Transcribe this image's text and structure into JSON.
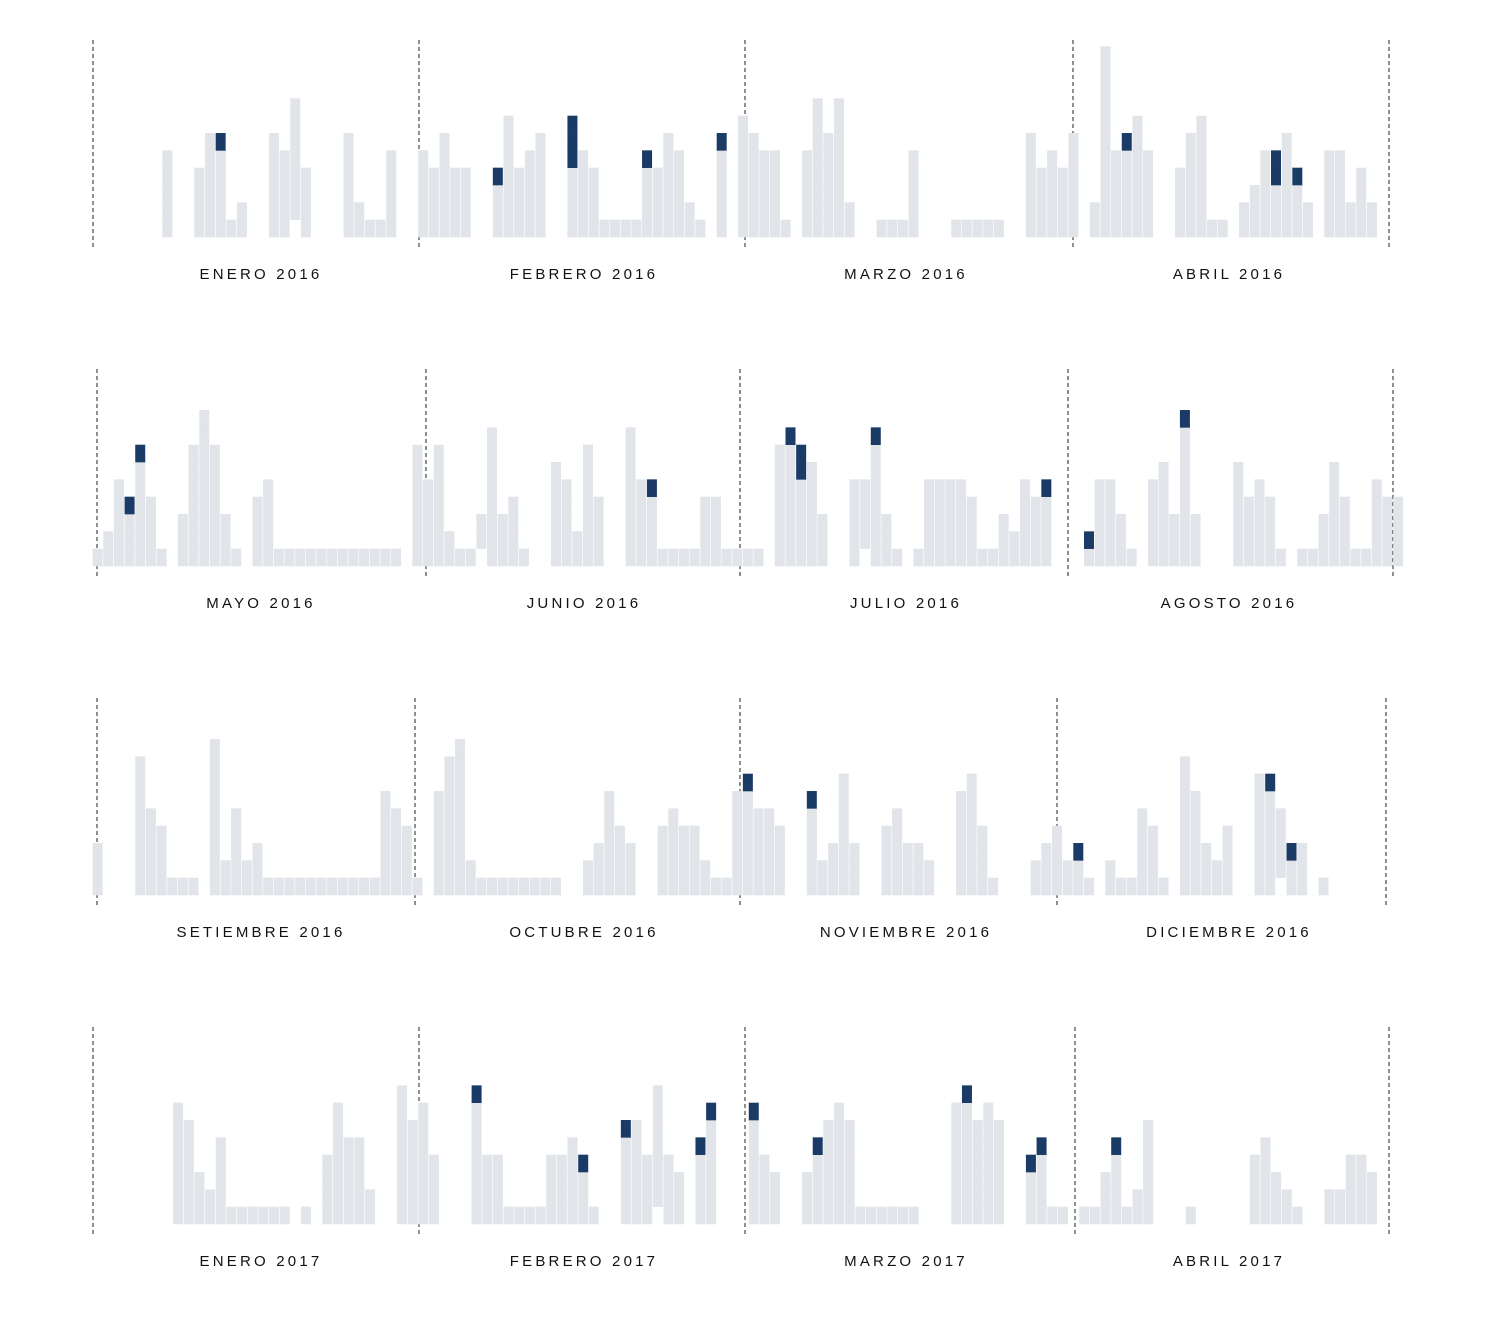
{
  "colors": {
    "base": "#e1e4e9",
    "highlight": "#1a3b65",
    "divider": "#222222"
  },
  "chart_data": {
    "type": "bar",
    "rows": [
      {
        "months": [
          {
            "label": "ENERO 2016",
            "days": [
              0,
              0,
              0,
              0,
              0,
              0,
              5,
              0,
              0,
              4,
              6,
              "gggggd",
              1,
              2,
              0,
              0,
              6,
              5,
              "_ggggggg",
              4,
              0,
              0,
              0,
              6,
              2,
              1,
              1,
              5,
              0,
              0,
              5
            ]
          },
          {
            "label": "FEBRERO 2016",
            "days": [
              4,
              6,
              4,
              4,
              0,
              0,
              "gggd",
              7,
              4,
              5,
              6,
              0,
              0,
              "ggggddd",
              5,
              4,
              1,
              1,
              1,
              1,
              "ggggd",
              4,
              6,
              5,
              2,
              1,
              0,
              "gggggd",
              0
            ]
          },
          {
            "label": "MARZO 2016",
            "days": [
              7,
              6,
              5,
              5,
              1,
              0,
              5,
              8,
              6,
              8,
              2,
              0,
              0,
              1,
              1,
              1,
              5,
              0,
              0,
              0,
              1,
              1,
              1,
              1,
              1,
              0,
              0,
              6,
              4,
              5,
              4
            ]
          },
          {
            "label": "ABRIL 2016",
            "days": [
              6,
              0,
              2,
              11,
              5,
              "gggggd",
              7,
              5,
              0,
              0,
              4,
              6,
              7,
              1,
              1,
              0,
              2,
              3,
              5,
              "gggdd",
              6,
              "gggd",
              2,
              0,
              5,
              5,
              2,
              4,
              2,
              0
            ]
          }
        ]
      },
      {
        "months": [
          {
            "label": "MAYO 2016",
            "days": [
              1,
              2,
              5,
              "gggd",
              "ggggggd",
              4,
              1,
              0,
              3,
              7,
              9,
              7,
              3,
              1,
              0,
              4,
              5,
              1,
              1,
              1,
              1,
              1,
              1,
              1,
              1,
              1,
              1,
              1,
              1,
              0,
              7
            ]
          },
          {
            "label": "JUNIO 2016",
            "days": [
              5,
              7,
              2,
              1,
              1,
              "_gg",
              8,
              3,
              4,
              1,
              0,
              0,
              6,
              5,
              2,
              7,
              4,
              0,
              0,
              8,
              5,
              "ggggd",
              1,
              1,
              1,
              1,
              4,
              4,
              1,
              1,
              1
            ]
          },
          {
            "label": "JULIO 2016",
            "days": [
              1,
              0,
              7,
              "gggggggd",
              "gggggdd",
              6,
              3,
              0,
              0,
              5,
              "_gggg",
              "gggggggd",
              3,
              1,
              0,
              1,
              5,
              5,
              5,
              5,
              4,
              1,
              1,
              3,
              2,
              5,
              4,
              "ggggd",
              0,
              0,
              0
            ]
          },
          {
            "label": "AGOSTO 2016",
            "days": [
              "gd",
              5,
              5,
              3,
              1,
              0,
              5,
              6,
              3,
              "ggggggggd",
              3,
              0,
              0,
              0,
              6,
              4,
              5,
              4,
              1,
              0,
              1,
              1,
              3,
              6,
              4,
              1,
              1,
              5,
              4,
              4
            ]
          }
        ]
      },
      {
        "months": [
          {
            "label": "SETIEMBRE 2016",
            "days": [
              3,
              0,
              0,
              0,
              8,
              5,
              4,
              1,
              1,
              1,
              0,
              9,
              2,
              5,
              2,
              3,
              1,
              1,
              1,
              1,
              1,
              1,
              1,
              1,
              1,
              1,
              1,
              6,
              5,
              4
            ]
          },
          {
            "label": "OCTUBRE 2016",
            "days": [
              1,
              0,
              6,
              8,
              9,
              2,
              1,
              1,
              1,
              1,
              1,
              1,
              1,
              1,
              0,
              0,
              2,
              3,
              6,
              4,
              3,
              0,
              0,
              4,
              5,
              4,
              4,
              2,
              1,
              1,
              6
            ]
          },
          {
            "label": "NOVIEMBRE 2016",
            "days": [
              "ggggggd",
              5,
              5,
              4,
              0,
              0,
              "gggggd",
              2,
              3,
              7,
              3,
              0,
              0,
              4,
              5,
              3,
              3,
              2,
              0,
              0,
              6,
              7,
              4,
              1,
              0,
              0,
              0,
              2,
              3,
              4,
              2
            ]
          },
          {
            "label": "DICIEMBRE 2016",
            "days": [
              "ggd",
              1,
              0,
              2,
              1,
              1,
              5,
              4,
              1,
              0,
              8,
              6,
              3,
              2,
              4,
              0,
              0,
              7,
              "ggggggd",
              "_gggg",
              "ggd",
              3,
              0,
              1,
              0,
              0,
              0,
              0,
              0,
              0,
              0
            ]
          }
        ]
      },
      {
        "months": [
          {
            "label": "ENERO 2017",
            "days": [
              0,
              0,
              0,
              0,
              0,
              0,
              0,
              7,
              6,
              3,
              2,
              5,
              1,
              1,
              1,
              1,
              1,
              1,
              0,
              1,
              0,
              4,
              7,
              5,
              5,
              2,
              0,
              0,
              8,
              6,
              7
            ]
          },
          {
            "label": "FEBRERO 2017",
            "days": [
              4,
              0,
              0,
              0,
              "gggggggd",
              4,
              4,
              1,
              1,
              1,
              1,
              4,
              4,
              5,
              "gggd",
              1,
              0,
              0,
              "gggggd",
              6,
              4,
              "_ggggggg",
              4,
              3,
              0,
              "ggggd",
              "ggggggd",
              0,
              0,
              0
            ]
          },
          {
            "label": "MARZO 2017",
            "days": [
              "ggggggd",
              4,
              3,
              0,
              0,
              3,
              "ggggd",
              6,
              7,
              6,
              1,
              1,
              1,
              1,
              1,
              1,
              0,
              0,
              0,
              7,
              "gggggggd",
              6,
              7,
              6,
              0,
              0,
              "gggd",
              "ggggd",
              1,
              1,
              0
            ]
          },
          {
            "label": "ABRIL 2017",
            "days": [
              1,
              1,
              3,
              "ggggd",
              1,
              2,
              6,
              0,
              0,
              0,
              1,
              0,
              0,
              0,
              0,
              0,
              4,
              5,
              3,
              2,
              1,
              0,
              0,
              2,
              2,
              4,
              4,
              3,
              0,
              0
            ]
          }
        ]
      }
    ],
    "grid": false,
    "legend": "none"
  }
}
